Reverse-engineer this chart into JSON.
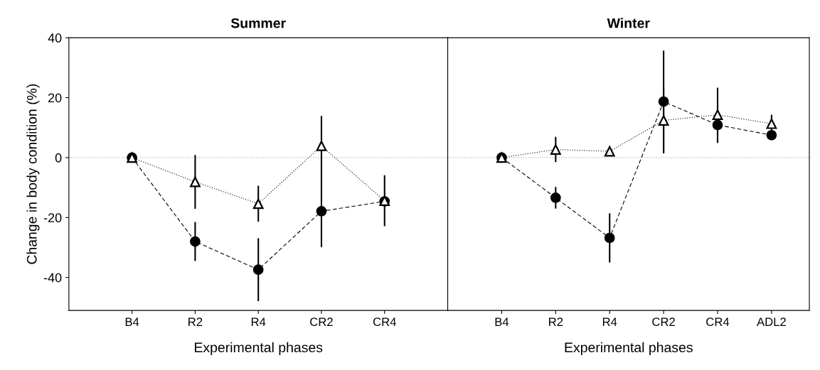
{
  "chart_data": [
    {
      "type": "line",
      "title": "Summer",
      "xlabel": "Experimental phases",
      "ylabel": "Change in body condition (%)",
      "categories": [
        "B4",
        "R2",
        "R4",
        "CR2",
        "CR4"
      ],
      "ylim": [
        -51,
        40
      ],
      "yticks": [
        -40,
        -20,
        0,
        20,
        40
      ],
      "ref_lines": [
        {
          "axis": "y",
          "value": 0,
          "color": "#aaaaaa",
          "line_style": "dotted"
        }
      ],
      "series": [
        {
          "color": "#000000",
          "marker": "circle",
          "line_style": "dashed",
          "values": [
            0,
            -28,
            -37.4,
            -17.9,
            -14.6
          ],
          "errors": [
            null,
            6.5,
            10.5,
            12,
            null
          ]
        },
        {
          "color": "#000000",
          "marker": "triangle",
          "line_style": "dotted",
          "values": [
            0,
            -8.1,
            -15.4,
            3.9,
            -14.4
          ],
          "errors": [
            null,
            9,
            6,
            10,
            8.5
          ]
        }
      ],
      "grid": false
    },
    {
      "type": "line",
      "title": "Winter",
      "xlabel": "Experimental phases",
      "categories": [
        "B4",
        "R2",
        "R4",
        "CR2",
        "CR4",
        "ADL2"
      ],
      "ylim": [
        -51,
        40
      ],
      "tick_labels": "x",
      "ref_lines": [
        {
          "axis": "y",
          "value": 0,
          "color": "#aaaaaa",
          "line_style": "dotted"
        }
      ],
      "series": [
        {
          "color": "#000000",
          "marker": "circle",
          "line_style": "dashed",
          "values": [
            0,
            -13.4,
            -26.8,
            18.7,
            10.9,
            7.5
          ],
          "errors": [
            null,
            3.6,
            8.2,
            17,
            6,
            null
          ]
        },
        {
          "color": "#000000",
          "marker": "triangle",
          "line_style": "dotted",
          "values": [
            0,
            2.7,
            2.1,
            12.4,
            14.3,
            11.3
          ],
          "errors": [
            null,
            4.2,
            null,
            11,
            9,
            3
          ]
        }
      ],
      "grid": false
    }
  ]
}
